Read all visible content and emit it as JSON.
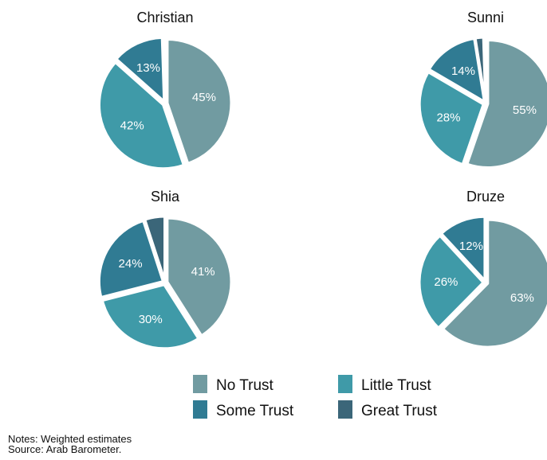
{
  "colors": {
    "No Trust": "#719ba1",
    "Little Trust": "#3f9aa8",
    "Some Trust": "#307b93",
    "Great Trust": "#3b6679",
    "Other": "#c9785d"
  },
  "legend": [
    {
      "label": "No Trust"
    },
    {
      "label": "Little Trust"
    },
    {
      "label": "Some Trust"
    },
    {
      "label": "Great Trust"
    }
  ],
  "notes": {
    "line1": "Notes: Weighted estimates",
    "line2": "Source: Arab Barometer."
  },
  "chart_data": [
    {
      "type": "pie",
      "title": "Christian",
      "slices": [
        {
          "category": "No Trust",
          "value": 45,
          "label": "45%"
        },
        {
          "category": "Little Trust",
          "value": 42,
          "label": "42%"
        },
        {
          "category": "Some Trust",
          "value": 13,
          "label": "13%"
        },
        {
          "category": "Great Trust",
          "value": 0.5,
          "label": ""
        }
      ]
    },
    {
      "type": "pie",
      "title": "Sunni",
      "slices": [
        {
          "category": "No Trust",
          "value": 55,
          "label": "55%"
        },
        {
          "category": "Little Trust",
          "value": 28,
          "label": "28%"
        },
        {
          "category": "Some Trust",
          "value": 14,
          "label": "14%"
        },
        {
          "category": "Great Trust",
          "value": 2,
          "label": ""
        },
        {
          "category": "Other",
          "value": 0.5,
          "label": ""
        }
      ]
    },
    {
      "type": "pie",
      "title": "Shia",
      "slices": [
        {
          "category": "No Trust",
          "value": 41,
          "label": "41%"
        },
        {
          "category": "Little Trust",
          "value": 30,
          "label": "30%"
        },
        {
          "category": "Some Trust",
          "value": 24,
          "label": "24%"
        },
        {
          "category": "Great Trust",
          "value": 5,
          "label": ""
        }
      ]
    },
    {
      "type": "pie",
      "title": "Druze",
      "slices": [
        {
          "category": "No Trust",
          "value": 63,
          "label": "63%"
        },
        {
          "category": "Little Trust",
          "value": 26,
          "label": "26%"
        },
        {
          "category": "Some Trust",
          "value": 12,
          "label": "12%"
        }
      ]
    }
  ]
}
